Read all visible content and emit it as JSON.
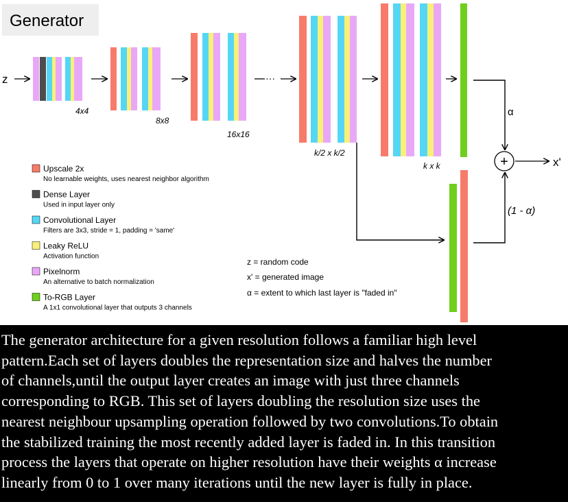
{
  "title": "Generator",
  "z_label": "z",
  "xprime_label": "x'",
  "alpha_label": "α",
  "one_minus_alpha_label": "(1 - α)",
  "plus_symbol": "+",
  "ellipsis": "···",
  "resolution_labels": [
    "4x4",
    "8x8",
    "16x16",
    "k/2 x k/2",
    "k x k"
  ],
  "legend": [
    {
      "name": "Upscale 2x",
      "desc": "No learnable weights, uses nearest neighbor algorithm",
      "color": "#f77b6a"
    },
    {
      "name": "Dense Layer",
      "desc": "Used in input layer only",
      "color": "#4d4d4d"
    },
    {
      "name": "Convolutional Layer",
      "desc": "Filters are 3x3, stride = 1,  padding = 'same'",
      "color": "#55d6f5"
    },
    {
      "name": "Leaky ReLU",
      "desc": "Activation function",
      "color": "#f9f07a"
    },
    {
      "name": "Pixelnorm",
      "desc": "An alternative to batch normalization",
      "color": "#e9a8f7"
    },
    {
      "name": "To-RGB Layer",
      "desc": "A 1x1 convolutional layer that outputs 3 channels",
      "color": "#6fcf1c"
    }
  ],
  "notes": [
    "z = random code",
    "x' = generated image",
    "α = extent to which last layer is \"faded in\""
  ],
  "caption_lines": [
    "The generator architecture for a given resolution follows a familiar high level",
    "pattern.Each set of layers doubles the representation size and halves the number",
    "of channels,until the output layer creates an image with just three channels",
    "corresponding to RGB. This set of layers doubling the resolution size uses the",
    "nearest neighbour upsampling operation followed by two convolutions.To obtain",
    "the stabilized training the most recently added layer is faded in. In this transition",
    "process the layers that operate on higher resolution have their weights α increase",
    "linearly from 0 to 1 over many iterations until the new layer is fully in place."
  ]
}
